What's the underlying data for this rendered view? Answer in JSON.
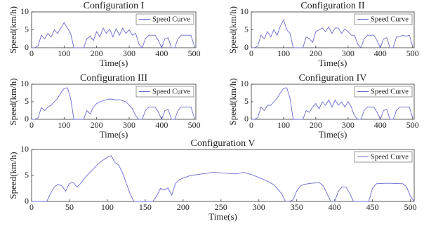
{
  "chart_data": [
    {
      "type": "line",
      "title": "Configuration I",
      "xlabel": "Time(s)",
      "ylabel": "Speed(km/h)",
      "legend": "upper right",
      "xlim": [
        0,
        505
      ],
      "ylim": [
        0,
        10
      ],
      "xticks": [
        0,
        100,
        200,
        300,
        400,
        500
      ],
      "yticks": [
        0,
        5,
        10
      ],
      "series": [
        {
          "name": "Speed Curve",
          "color": "#6a6ad0",
          "x": [
            0,
            10,
            20,
            30,
            40,
            50,
            60,
            70,
            80,
            90,
            100,
            110,
            120,
            130,
            140,
            150,
            160,
            170,
            180,
            190,
            200,
            210,
            220,
            230,
            240,
            250,
            260,
            270,
            280,
            290,
            300,
            310,
            320,
            330,
            340,
            350,
            360,
            370,
            380,
            390,
            400,
            410,
            420,
            430,
            440,
            450,
            460,
            470,
            480,
            490,
            500
          ],
          "values": [
            0,
            0,
            0.5,
            3.5,
            2.5,
            4,
            3,
            5,
            4,
            5.5,
            7,
            5.5,
            4,
            0,
            0,
            0,
            0,
            2.5,
            3.2,
            2,
            4.5,
            3,
            5.5,
            4,
            5.2,
            3,
            5.3,
            3.5,
            5.5,
            4,
            5,
            3.5,
            4,
            1,
            0,
            2.5,
            3.5,
            3.5,
            3.5,
            2,
            0,
            2.5,
            2.8,
            0,
            0,
            2.5,
            3.5,
            3.5,
            3.5,
            3.5,
            0.5
          ]
        }
      ]
    },
    {
      "type": "line",
      "title": "Configuration II",
      "xlabel": "Time(s)",
      "ylabel": "Speed(km/h)",
      "legend": "upper right",
      "xlim": [
        0,
        505
      ],
      "ylim": [
        0,
        10
      ],
      "xticks": [
        0,
        100,
        200,
        300,
        400,
        500
      ],
      "yticks": [
        0,
        5,
        10
      ],
      "series": [
        {
          "name": "Speed Curve",
          "color": "#6a6ad0",
          "x": [
            0,
            10,
            20,
            30,
            40,
            50,
            60,
            70,
            80,
            90,
            100,
            110,
            120,
            130,
            140,
            150,
            160,
            170,
            180,
            190,
            200,
            210,
            220,
            230,
            240,
            250,
            260,
            270,
            280,
            290,
            300,
            310,
            320,
            330,
            340,
            350,
            360,
            370,
            380,
            390,
            400,
            410,
            420,
            430,
            440,
            450,
            460,
            470,
            480,
            490,
            500
          ],
          "values": [
            0,
            0,
            0.5,
            3.5,
            2.5,
            4.5,
            3,
            5,
            3.5,
            6,
            7.8,
            5,
            4,
            0,
            0,
            0,
            0,
            3,
            2.5,
            1.5,
            4.5,
            5,
            5.5,
            4.5,
            5.8,
            4,
            5.5,
            5.5,
            4,
            5.2,
            4.5,
            3.5,
            3.5,
            1,
            0,
            2.5,
            3.5,
            3.5,
            3.5,
            2,
            0,
            2.5,
            2.8,
            0,
            0,
            3,
            3,
            3.5,
            3.2,
            3.5,
            0.5
          ]
        }
      ]
    },
    {
      "type": "line",
      "title": "Configuration III",
      "xlabel": "Time(s)",
      "ylabel": "Speed(km/h)",
      "legend": "upper right",
      "xlim": [
        0,
        505
      ],
      "ylim": [
        0,
        10
      ],
      "xticks": [
        0,
        100,
        200,
        300,
        400,
        500
      ],
      "yticks": [
        0,
        5,
        10
      ],
      "series": [
        {
          "name": "Speed Curve",
          "color": "#6a6ad0",
          "x": [
            0,
            10,
            20,
            30,
            40,
            50,
            60,
            70,
            80,
            90,
            100,
            110,
            120,
            130,
            140,
            150,
            160,
            170,
            180,
            190,
            200,
            210,
            220,
            230,
            240,
            250,
            260,
            270,
            280,
            290,
            300,
            310,
            320,
            330,
            340,
            350,
            360,
            370,
            380,
            390,
            400,
            410,
            420,
            430,
            440,
            450,
            460,
            470,
            480,
            490,
            500
          ],
          "values": [
            0,
            0,
            0.5,
            3.3,
            2.5,
            3.5,
            4,
            5,
            6,
            7.5,
            8.8,
            9,
            6,
            0,
            0,
            0,
            0,
            2.5,
            1.5,
            3.5,
            4.5,
            5,
            5.3,
            5.6,
            5.8,
            5.7,
            5.5,
            5.6,
            5.3,
            5,
            4,
            3,
            1,
            0,
            0,
            2.5,
            3.5,
            3.5,
            3.5,
            2,
            0,
            2.5,
            2.8,
            0,
            0,
            2.5,
            3.5,
            3.5,
            3.5,
            3.5,
            0.5
          ]
        }
      ]
    },
    {
      "type": "line",
      "title": "Configuration IV",
      "xlabel": "Time(s)",
      "ylabel": "Speed(km/h)",
      "legend": "upper right",
      "xlim": [
        0,
        505
      ],
      "ylim": [
        0,
        10
      ],
      "xticks": [
        0,
        100,
        200,
        300,
        400,
        500
      ],
      "yticks": [
        0,
        5,
        10
      ],
      "series": [
        {
          "name": "Speed Curve",
          "color": "#6a6ad0",
          "x": [
            0,
            10,
            20,
            30,
            40,
            50,
            60,
            70,
            80,
            90,
            100,
            110,
            120,
            130,
            140,
            150,
            160,
            170,
            180,
            190,
            200,
            210,
            220,
            230,
            240,
            250,
            260,
            270,
            280,
            290,
            300,
            310,
            320,
            330,
            340,
            350,
            360,
            370,
            380,
            390,
            400,
            410,
            420,
            430,
            440,
            450,
            460,
            470,
            480,
            490,
            500
          ],
          "values": [
            0,
            0,
            0.5,
            3.5,
            2.5,
            4,
            4,
            5,
            6,
            7.5,
            8.8,
            9,
            6,
            0,
            0,
            0,
            0,
            2.5,
            2,
            3.5,
            4.5,
            3,
            5,
            4,
            5.5,
            3.5,
            5.5,
            4,
            5,
            3.5,
            5,
            3.5,
            1,
            0,
            0,
            2.5,
            3.5,
            3.5,
            3.5,
            2,
            0,
            2.5,
            2.8,
            0,
            0,
            2.5,
            3.5,
            3.5,
            3.5,
            3.5,
            0.5
          ]
        }
      ]
    },
    {
      "type": "line",
      "title": "Configuration V",
      "xlabel": "Time(s)",
      "ylabel": "Speed(km/h)",
      "legend": "upper right",
      "xlim": [
        0,
        505
      ],
      "ylim": [
        0,
        10
      ],
      "xticks": [
        0,
        50,
        100,
        150,
        200,
        250,
        300,
        350,
        400,
        450,
        500
      ],
      "yticks": [
        0,
        5,
        10
      ],
      "series": [
        {
          "name": "Speed Curve",
          "color": "#6a6ad0",
          "x": [
            0,
            10,
            20,
            25,
            30,
            35,
            40,
            45,
            50,
            55,
            60,
            65,
            70,
            75,
            80,
            85,
            90,
            95,
            100,
            105,
            110,
            115,
            120,
            125,
            130,
            135,
            150,
            160,
            165,
            170,
            175,
            180,
            185,
            190,
            195,
            200,
            210,
            220,
            230,
            240,
            250,
            260,
            270,
            280,
            290,
            300,
            310,
            320,
            330,
            335,
            340,
            345,
            350,
            355,
            360,
            370,
            380,
            385,
            390,
            395,
            400,
            405,
            410,
            415,
            420,
            425,
            430,
            445,
            450,
            455,
            470,
            490,
            495,
            500,
            505
          ],
          "values": [
            0,
            0,
            0,
            1.5,
            2.8,
            3.3,
            3.0,
            2.0,
            3.5,
            3.6,
            2.8,
            3.5,
            4.5,
            5.3,
            6.0,
            6.8,
            7.5,
            8.0,
            8.5,
            8.8,
            7.5,
            7.0,
            5.5,
            3.5,
            1.5,
            0,
            0,
            0,
            1.0,
            2.5,
            2.2,
            2.6,
            1.2,
            3.5,
            4.2,
            4.5,
            5.0,
            5.2,
            5.4,
            5.6,
            5.5,
            5.4,
            5.3,
            5.6,
            5.2,
            4.6,
            4.0,
            3.2,
            1.5,
            0,
            0,
            0.3,
            2.0,
            3.0,
            3.3,
            3.5,
            3.6,
            3.0,
            1.5,
            0,
            0,
            2.0,
            2.8,
            2.8,
            1.5,
            0,
            0,
            0,
            2.5,
            3.4,
            3.5,
            3.4,
            2.8,
            1.0,
            0
          ]
        }
      ]
    }
  ]
}
